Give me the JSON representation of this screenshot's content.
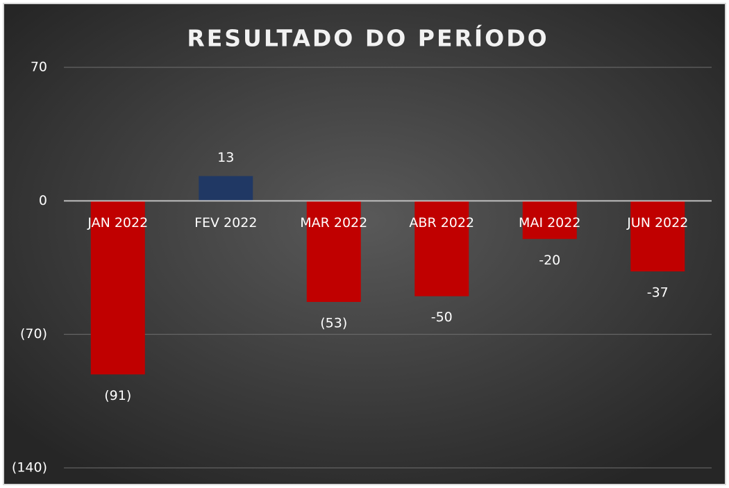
{
  "chart_data": {
    "type": "bar",
    "title": "RESULTADO DO PERÍODO",
    "categories": [
      "JAN 2022",
      "FEV 2022",
      "MAR 2022",
      "ABR 2022",
      "MAI 2022",
      "JUN 2022"
    ],
    "values": [
      -91,
      13,
      -53,
      -50,
      -20,
      -37
    ],
    "value_labels": [
      "(91)",
      "13",
      "(53)",
      "-50",
      "-20",
      "-37"
    ],
    "colors": [
      "#c00000",
      "#203864",
      "#c00000",
      "#c00000",
      "#c00000",
      "#c00000"
    ],
    "ylim": [
      -140,
      70
    ],
    "yticks": [
      70,
      0,
      {
        "value": -70,
        "label": "(70)"
      },
      {
        "value": -140,
        "label": "(140)"
      }
    ],
    "grid": true
  }
}
